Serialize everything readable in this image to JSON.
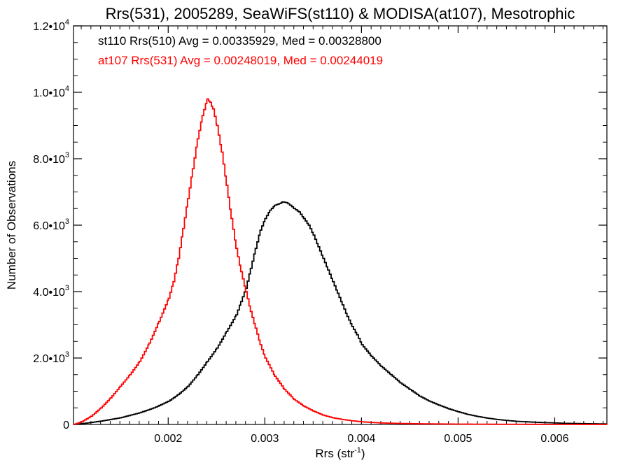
{
  "chart_data": {
    "type": "line",
    "title": "Rrs(531), 2005289, SeaWiFS(st110) & MODISA(at107), Mesotrophic",
    "xlabel": "Rrs (str",
    "xlabel_sup": "-1",
    "xlabel_close": ")",
    "ylabel": "Number of Observations",
    "xlim": [
      0.00102,
      0.00654
    ],
    "ylim": [
      0,
      12000
    ],
    "x_ticks": [
      {
        "value": 0.002,
        "label": "0.002"
      },
      {
        "value": 0.003,
        "label": "0.003"
      },
      {
        "value": 0.004,
        "label": "0.004"
      },
      {
        "value": 0.005,
        "label": "0.005"
      },
      {
        "value": 0.006,
        "label": "0.006"
      }
    ],
    "y_ticks": [
      {
        "value": 0,
        "mant": "0",
        "exp": ""
      },
      {
        "value": 2000,
        "mant": "2.0•10",
        "exp": "3"
      },
      {
        "value": 4000,
        "mant": "4.0•10",
        "exp": "3"
      },
      {
        "value": 6000,
        "mant": "6.0•10",
        "exp": "3"
      },
      {
        "value": 8000,
        "mant": "8.0•10",
        "exp": "3"
      },
      {
        "value": 10000,
        "mant": "1.0•10",
        "exp": "4"
      },
      {
        "value": 12000,
        "mant": "1.2•10",
        "exp": "4"
      }
    ],
    "legend_position": "top-left",
    "series": [
      {
        "name": "st110 Rrs(510) Avg = 0.00335929, Med = 0.00328800",
        "color": "#000000",
        "style": "step",
        "x": [
          0.00102,
          0.00115,
          0.0013,
          0.0015,
          0.0017,
          0.00185,
          0.002,
          0.0021,
          0.0022,
          0.0023,
          0.0024,
          0.0025,
          0.0026,
          0.0027,
          0.00275,
          0.0028,
          0.00285,
          0.0029,
          0.00295,
          0.003,
          0.00305,
          0.0031,
          0.00315,
          0.00318,
          0.00322,
          0.00326,
          0.0033,
          0.00335,
          0.0034,
          0.00345,
          0.0035,
          0.00355,
          0.0036,
          0.00365,
          0.0037,
          0.00375,
          0.0038,
          0.00385,
          0.0039,
          0.00395,
          0.004,
          0.0041,
          0.0042,
          0.0043,
          0.0044,
          0.0045,
          0.0046,
          0.0047,
          0.0048,
          0.0049,
          0.005,
          0.0051,
          0.0052,
          0.0053,
          0.0054,
          0.0055,
          0.0056,
          0.0057,
          0.0058,
          0.0059,
          0.006,
          0.0061,
          0.0062,
          0.0063,
          0.0064,
          0.00654
        ],
        "y": [
          0,
          40,
          100,
          200,
          350,
          500,
          700,
          900,
          1150,
          1500,
          1900,
          2300,
          2800,
          3300,
          3700,
          4100,
          4700,
          5300,
          5850,
          6200,
          6450,
          6600,
          6650,
          6700,
          6680,
          6600,
          6500,
          6400,
          6200,
          6000,
          5700,
          5350,
          5000,
          4650,
          4300,
          3950,
          3600,
          3250,
          2950,
          2700,
          2400,
          2050,
          1750,
          1500,
          1250,
          1050,
          850,
          700,
          580,
          470,
          380,
          300,
          240,
          190,
          150,
          120,
          95,
          80,
          65,
          55,
          45,
          35,
          30,
          25,
          20,
          15
        ]
      },
      {
        "name": "at107 Rrs(531) Avg = 0.00248019, Med = 0.00244019",
        "color": "#ff0000",
        "style": "step",
        "x": [
          0.00102,
          0.0011,
          0.0012,
          0.0013,
          0.0014,
          0.0015,
          0.0016,
          0.0017,
          0.0018,
          0.0019,
          0.002,
          0.00205,
          0.0021,
          0.00215,
          0.0022,
          0.00225,
          0.0023,
          0.00235,
          0.0024,
          0.00243,
          0.00246,
          0.0025,
          0.00255,
          0.0026,
          0.00265,
          0.0027,
          0.00275,
          0.0028,
          0.00285,
          0.0029,
          0.00295,
          0.003,
          0.0031,
          0.0032,
          0.0033,
          0.0034,
          0.0035,
          0.0036,
          0.0037,
          0.0038,
          0.0039,
          0.004,
          0.0041,
          0.0042,
          0.0044,
          0.0046,
          0.0048,
          0.005,
          0.0052,
          0.0054,
          0.0056,
          0.0058,
          0.006,
          0.0062,
          0.0064,
          0.00654
        ],
        "y": [
          0,
          80,
          250,
          500,
          800,
          1150,
          1500,
          1900,
          2450,
          3100,
          3800,
          4300,
          5000,
          5900,
          6800,
          7700,
          8600,
          9300,
          9800,
          9700,
          9500,
          9000,
          8200,
          7200,
          6200,
          5300,
          4600,
          4000,
          3400,
          2900,
          2400,
          2000,
          1450,
          1050,
          750,
          550,
          400,
          280,
          200,
          150,
          110,
          80,
          60,
          45,
          30,
          20,
          15,
          10,
          8,
          6,
          5,
          4,
          3,
          2,
          1,
          1
        ]
      }
    ]
  }
}
